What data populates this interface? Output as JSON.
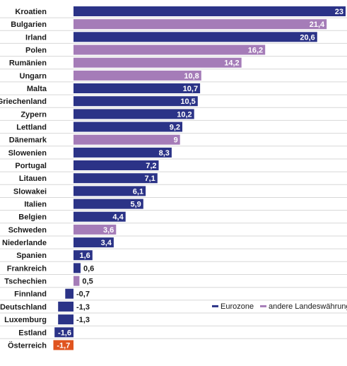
{
  "chart_data": {
    "type": "bar",
    "orientation": "horizontal",
    "categories": [
      "Kroatien",
      "Bulgarien",
      "Irland",
      "Polen",
      "Rumänien",
      "Ungarn",
      "Malta",
      "Griechenland",
      "Zypern",
      "Lettland",
      "Dänemark",
      "Slowenien",
      "Portugal",
      "Litauen",
      "Slowakei",
      "Italien",
      "Belgien",
      "Schweden",
      "Niederlande",
      "Spanien",
      "Frankreich",
      "Tschechien",
      "Finnland",
      "Deutschland",
      "Luxemburg",
      "Estland",
      "Österreich"
    ],
    "values": [
      23,
      21.4,
      20.6,
      16.2,
      14.2,
      10.8,
      10.7,
      10.5,
      10.2,
      9.2,
      9,
      8.3,
      7.2,
      7.1,
      6.1,
      5.9,
      4.4,
      3.6,
      3.4,
      1.6,
      0.6,
      0.5,
      -0.7,
      -1.3,
      -1.3,
      -1.6,
      -1.7
    ],
    "value_labels": [
      "23",
      "21,4",
      "20,6",
      "16,2",
      "14,2",
      "10,8",
      "10,7",
      "10,5",
      "10,2",
      "9,2",
      "9",
      "8,3",
      "7,2",
      "7,1",
      "6,1",
      "5,9",
      "4,4",
      "3,6",
      "3,4",
      "1,6",
      "0,6",
      "0,5",
      "-0,7",
      "-1,3",
      "-1,3",
      "-1,6",
      "-1,7"
    ],
    "groups": [
      "euro",
      "other",
      "euro",
      "other",
      "other",
      "other",
      "euro",
      "euro",
      "euro",
      "euro",
      "other",
      "euro",
      "euro",
      "euro",
      "euro",
      "euro",
      "euro",
      "other",
      "euro",
      "euro",
      "euro",
      "other",
      "euro",
      "euro",
      "euro",
      "euro",
      "highlight"
    ],
    "highlight_category": "Österreich",
    "legend": {
      "placement": "bottom-right",
      "items": [
        {
          "key": "euro",
          "label": "Eurozone"
        },
        {
          "key": "other",
          "label": "andere Landeswährung"
        }
      ]
    },
    "xlim": [
      -1.7,
      23
    ],
    "grid": false,
    "colors": {
      "euro": "#2b3387",
      "other": "#a57cb8",
      "highlight": "#e0541f",
      "separator": "#d7d7d7",
      "label_text": "#1a1a1a"
    }
  }
}
